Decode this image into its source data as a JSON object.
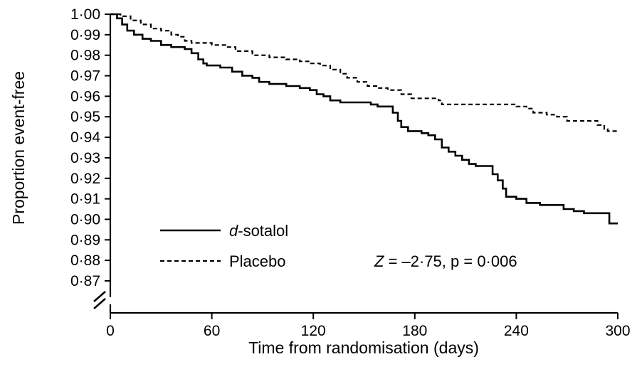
{
  "chart_data": {
    "type": "line",
    "title": "",
    "xlabel": "Time from randomisation (days)",
    "ylabel": "Proportion event-free",
    "xlim": [
      0,
      300
    ],
    "ylim": [
      0.87,
      1.0
    ],
    "y_axis_break": true,
    "grid": false,
    "legend_position": "bottom-left",
    "xticks": [
      "0",
      "60",
      "120",
      "180",
      "240",
      "300"
    ],
    "yticks": [
      "1·00",
      "0·99",
      "0·98",
      "0·97",
      "0·96",
      "0·95",
      "0·94",
      "0·93",
      "0·92",
      "0·91",
      "0·90",
      "0·89",
      "0·88",
      "0·87"
    ],
    "series": [
      {
        "name": "d-sotalol",
        "name_prefix": "d",
        "name_suffix": "-sotalol",
        "line_style": "solid",
        "color": "#000000",
        "points": [
          [
            0,
            1.0
          ],
          [
            4,
            0.998
          ],
          [
            7,
            0.995
          ],
          [
            10,
            0.992
          ],
          [
            14,
            0.99
          ],
          [
            19,
            0.988
          ],
          [
            24,
            0.987
          ],
          [
            30,
            0.985
          ],
          [
            36,
            0.984
          ],
          [
            40,
            0.984
          ],
          [
            44,
            0.983
          ],
          [
            48,
            0.981
          ],
          [
            52,
            0.978
          ],
          [
            55,
            0.976
          ],
          [
            57,
            0.975
          ],
          [
            65,
            0.974
          ],
          [
            72,
            0.972
          ],
          [
            78,
            0.97
          ],
          [
            84,
            0.969
          ],
          [
            88,
            0.967
          ],
          [
            94,
            0.966
          ],
          [
            100,
            0.966
          ],
          [
            104,
            0.965
          ],
          [
            112,
            0.964
          ],
          [
            118,
            0.963
          ],
          [
            122,
            0.961
          ],
          [
            126,
            0.96
          ],
          [
            130,
            0.958
          ],
          [
            136,
            0.957
          ],
          [
            148,
            0.957
          ],
          [
            154,
            0.956
          ],
          [
            158,
            0.955
          ],
          [
            164,
            0.955
          ],
          [
            167,
            0.952
          ],
          [
            170,
            0.948
          ],
          [
            172,
            0.945
          ],
          [
            176,
            0.943
          ],
          [
            184,
            0.942
          ],
          [
            188,
            0.941
          ],
          [
            192,
            0.939
          ],
          [
            196,
            0.935
          ],
          [
            200,
            0.933
          ],
          [
            204,
            0.931
          ],
          [
            208,
            0.929
          ],
          [
            212,
            0.927
          ],
          [
            216,
            0.926
          ],
          [
            222,
            0.926
          ],
          [
            226,
            0.922
          ],
          [
            229,
            0.919
          ],
          [
            232,
            0.915
          ],
          [
            234,
            0.911
          ],
          [
            240,
            0.91
          ],
          [
            246,
            0.908
          ],
          [
            254,
            0.907
          ],
          [
            262,
            0.907
          ],
          [
            268,
            0.905
          ],
          [
            274,
            0.904
          ],
          [
            280,
            0.903
          ],
          [
            294,
            0.903
          ],
          [
            295,
            0.898
          ],
          [
            300,
            0.898
          ]
        ]
      },
      {
        "name": "Placebo",
        "line_style": "dashed",
        "color": "#000000",
        "points": [
          [
            0,
            1.0
          ],
          [
            6,
            0.999
          ],
          [
            12,
            0.997
          ],
          [
            18,
            0.995
          ],
          [
            24,
            0.993
          ],
          [
            30,
            0.992
          ],
          [
            36,
            0.99
          ],
          [
            40,
            0.989
          ],
          [
            44,
            0.987
          ],
          [
            48,
            0.986
          ],
          [
            60,
            0.985
          ],
          [
            68,
            0.984
          ],
          [
            74,
            0.982
          ],
          [
            84,
            0.98
          ],
          [
            94,
            0.979
          ],
          [
            104,
            0.978
          ],
          [
            112,
            0.977
          ],
          [
            118,
            0.976
          ],
          [
            124,
            0.975
          ],
          [
            130,
            0.973
          ],
          [
            136,
            0.971
          ],
          [
            140,
            0.969
          ],
          [
            146,
            0.967
          ],
          [
            152,
            0.965
          ],
          [
            158,
            0.964
          ],
          [
            164,
            0.963
          ],
          [
            172,
            0.961
          ],
          [
            178,
            0.959
          ],
          [
            190,
            0.959
          ],
          [
            194,
            0.958
          ],
          [
            196,
            0.956
          ],
          [
            210,
            0.956
          ],
          [
            240,
            0.955
          ],
          [
            246,
            0.954
          ],
          [
            250,
            0.952
          ],
          [
            258,
            0.951
          ],
          [
            264,
            0.95
          ],
          [
            270,
            0.948
          ],
          [
            284,
            0.948
          ],
          [
            288,
            0.946
          ],
          [
            292,
            0.944
          ],
          [
            294,
            0.943
          ],
          [
            300,
            0.943
          ]
        ]
      }
    ],
    "annotation": {
      "z_symbol": "Z",
      "text": " = –2·75, p = 0·006"
    }
  }
}
